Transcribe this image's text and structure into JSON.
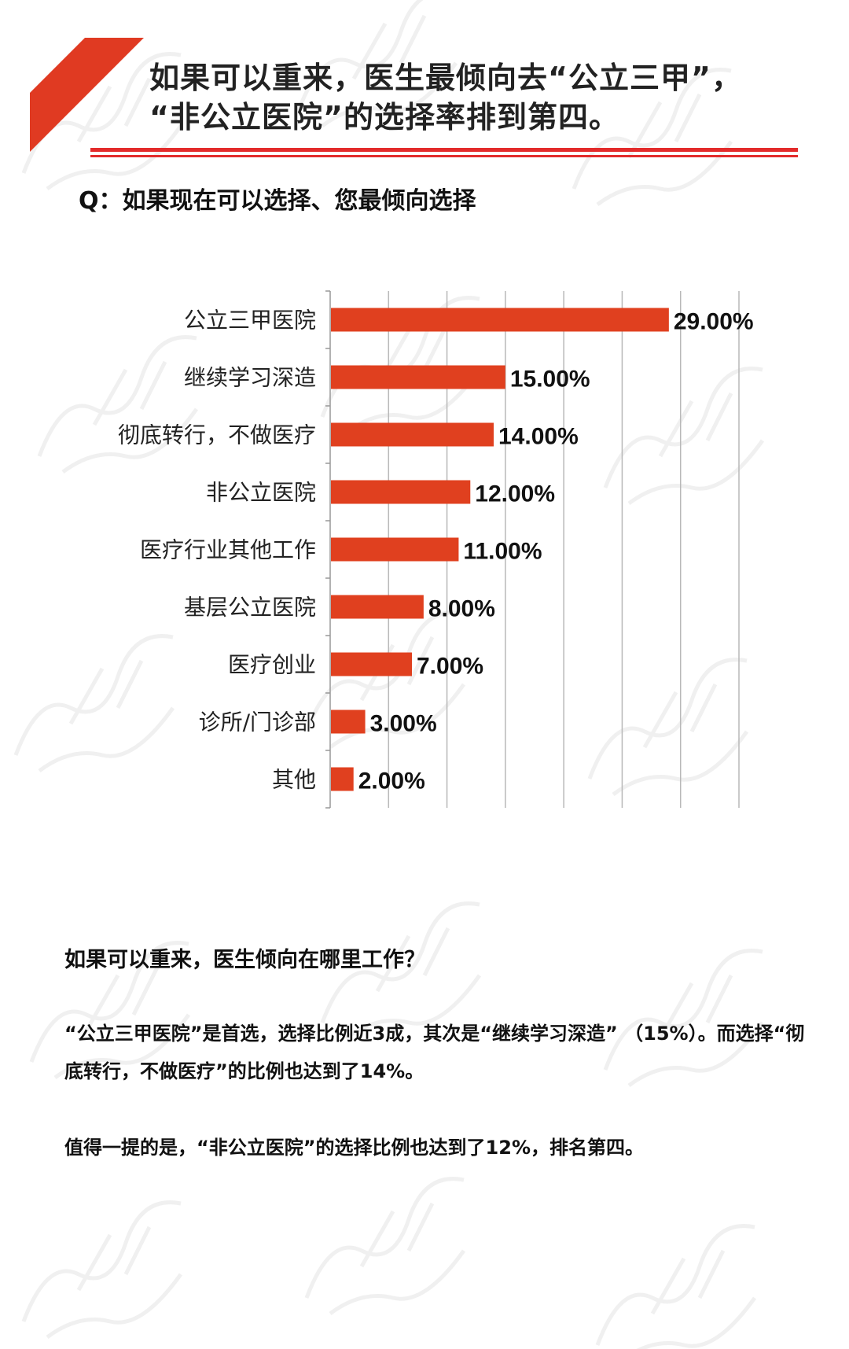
{
  "header": {
    "title_line1": "如果可以重来，医生最倾向去“公立三甲”，",
    "title_line2": "“非公立医院”的选择率排到第四。"
  },
  "question": "Q：如果现在可以选择、您最倾向选择",
  "chart_data": {
    "type": "bar",
    "orientation": "horizontal",
    "categories": [
      "公立三甲医院",
      "继续学习深造",
      "彻底转行，不做医疗",
      "非公立医院",
      "医疗行业其他工作",
      "基层公立医院",
      "医疗创业",
      "诊所/门诊部",
      "其他"
    ],
    "values": [
      29,
      15,
      14,
      12,
      11,
      8,
      7,
      3,
      2
    ],
    "value_labels": [
      "29.00%",
      "15.00%",
      "14.00%",
      "12.00%",
      "11.00%",
      "8.00%",
      "7.00%",
      "3.00%",
      "2.00%"
    ],
    "xlim": [
      0,
      35
    ],
    "grid": true,
    "bar_color": "#e0401f"
  },
  "body": {
    "heading": "如果可以重来，医生倾向在哪里工作？",
    "para1": "“公立三甲医院”是首选，选择比例近3成，其次是“继续学习深造” （15%）。而选择“彻底转行，不做医疗”的比例也达到了14%。",
    "para2": "值得一提的是，“非公立医院”的选择比例也达到了12%，排名第四。"
  },
  "colors": {
    "accent": "#e32b2b",
    "bar": "#e0401f"
  },
  "watermark": "医学界"
}
